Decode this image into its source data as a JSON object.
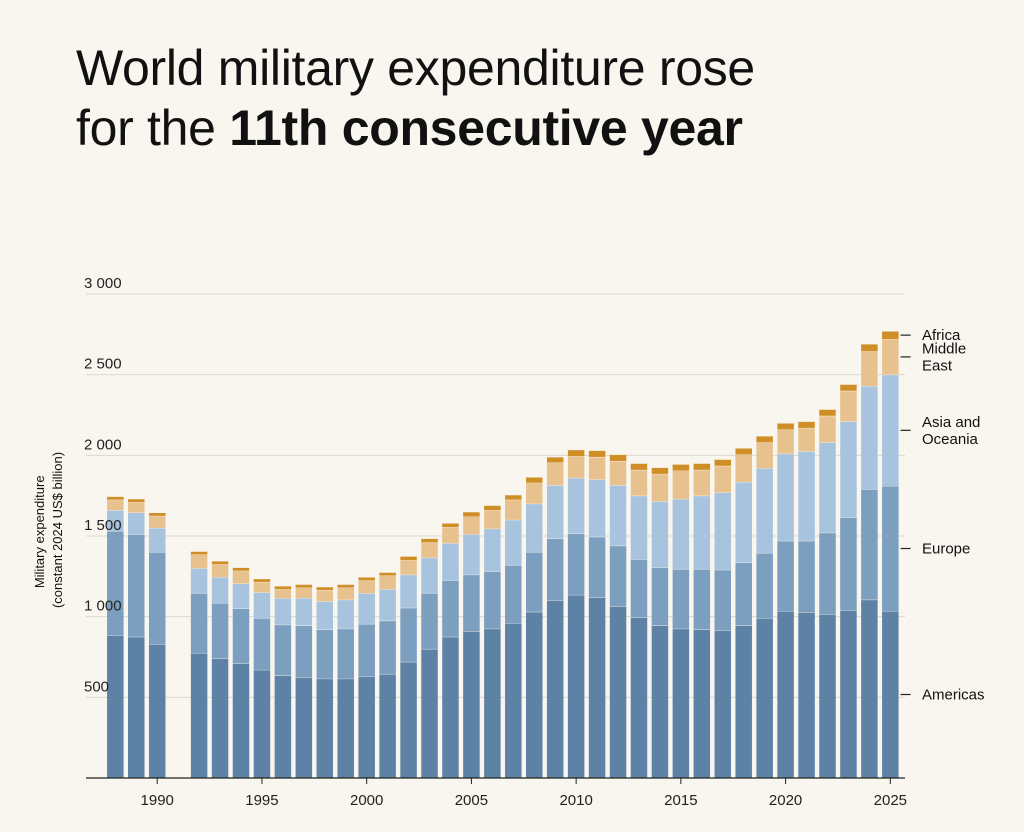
{
  "title": {
    "line1": "World military expenditure rose",
    "line2_prefix": "for the ",
    "line2_bold": "11th consecutive year"
  },
  "chart_data": {
    "type": "bar",
    "stacked": true,
    "title": "World military expenditure rose for the 11th consecutive year",
    "ylabel_lines": [
      "Military expenditure",
      "(constant 2024 US$ billion)"
    ],
    "xlabel": "",
    "ylim": [
      0,
      3000
    ],
    "yticks": [
      500,
      1000,
      1500,
      2000,
      2500,
      3000
    ],
    "ytick_labels": [
      "500",
      "1 000",
      "1 500",
      "2 000",
      "2 500",
      "3 000"
    ],
    "xlim": [
      1986.6,
      2025.7
    ],
    "xticks": [
      1990,
      1995,
      2000,
      2005,
      2010,
      2015,
      2020,
      2025
    ],
    "grid": true,
    "legend_position": "right",
    "x": [
      1988,
      1989,
      1990,
      1992,
      1993,
      1994,
      1995,
      1996,
      1997,
      1998,
      1999,
      2000,
      2001,
      2002,
      2003,
      2004,
      2005,
      2006,
      2007,
      2008,
      2009,
      2010,
      2011,
      2012,
      2013,
      2014,
      2015,
      2016,
      2017,
      2018,
      2019,
      2020,
      2021,
      2022,
      2023,
      2024,
      2025
    ],
    "series": [
      {
        "name": "Americas",
        "color": "#5d82a5",
        "values": [
          885,
          875,
          830,
          775,
          740,
          710,
          670,
          635,
          625,
          615,
          615,
          630,
          645,
          720,
          800,
          875,
          910,
          925,
          960,
          1030,
          1100,
          1135,
          1120,
          1065,
          995,
          945,
          925,
          920,
          915,
          945,
          990,
          1035,
          1025,
          1015,
          1040,
          1105,
          1035
        ]
      },
      {
        "name": "Europe",
        "color": "#7c9ebf",
        "values": [
          645,
          635,
          570,
          370,
          345,
          340,
          320,
          315,
          320,
          305,
          310,
          325,
          330,
          335,
          345,
          350,
          350,
          355,
          360,
          370,
          385,
          380,
          375,
          375,
          360,
          360,
          370,
          375,
          375,
          390,
          405,
          435,
          445,
          505,
          575,
          685,
          775
        ]
      },
      {
        "name": "Asia and\nOceania",
        "color": "#a7c3de",
        "values": [
          130,
          135,
          150,
          155,
          160,
          155,
          160,
          165,
          170,
          175,
          180,
          190,
          195,
          205,
          220,
          230,
          250,
          265,
          280,
          300,
          330,
          345,
          355,
          375,
          395,
          410,
          435,
          455,
          480,
          500,
          525,
          540,
          555,
          560,
          595,
          640,
          690
        ]
      },
      {
        "name": "Middle\nEast",
        "color": "#e7c28e",
        "values": [
          65,
          65,
          75,
          85,
          80,
          80,
          65,
          55,
          65,
          70,
          75,
          80,
          85,
          90,
          95,
          100,
          110,
          115,
          125,
          130,
          140,
          135,
          140,
          150,
          160,
          170,
          175,
          160,
          165,
          170,
          160,
          150,
          145,
          165,
          190,
          215,
          220
        ]
      },
      {
        "name": "Africa",
        "color": "#cf8f26",
        "values": [
          20,
          20,
          20,
          20,
          20,
          20,
          20,
          20,
          20,
          20,
          20,
          20,
          20,
          25,
          25,
          25,
          30,
          30,
          30,
          35,
          35,
          40,
          40,
          40,
          40,
          40,
          40,
          40,
          40,
          40,
          40,
          40,
          40,
          40,
          40,
          45,
          50
        ]
      }
    ]
  }
}
